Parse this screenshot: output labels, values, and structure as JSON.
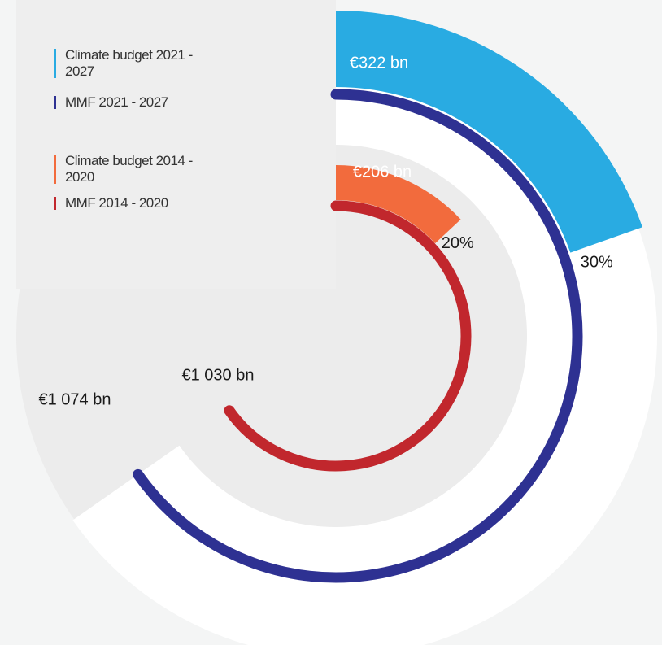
{
  "chart_data": {
    "type": "radial_bar",
    "series": [
      {
        "name": "Climate budget 2021 - 2027",
        "color": "#29abe2",
        "values": [
          322
        ],
        "value_labels": [
          "€322 bn"
        ]
      },
      {
        "name": "MMF 2021 - 2027",
        "color": "#2e3192",
        "values": [
          1074
        ],
        "value_labels": [
          "€1 074 bn"
        ]
      },
      {
        "name": "Climate budget 2014 - 2020",
        "color": "#f26b3d",
        "values": [
          206
        ],
        "value_labels": [
          "€206 bn"
        ]
      },
      {
        "name": "MMF 2014 - 2020",
        "color": "#c1272d",
        "values": [
          1030
        ],
        "value_labels": [
          "€1 030 bn"
        ]
      }
    ],
    "shares": [
      {
        "value": 30,
        "label": "30%"
      },
      {
        "value": 20,
        "label": "20%"
      }
    ]
  }
}
